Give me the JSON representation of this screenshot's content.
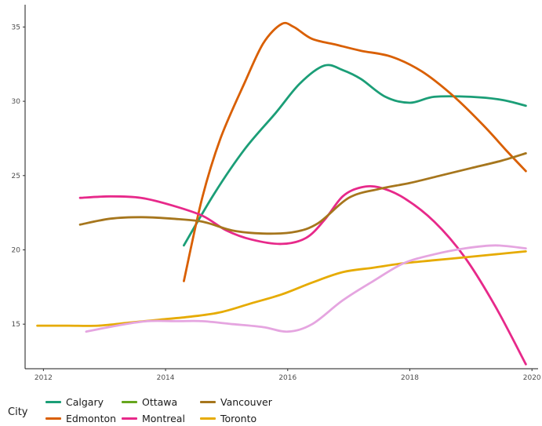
{
  "chart_data": {
    "type": "line",
    "xlim": [
      2011.7,
      2020.1
    ],
    "ylim": [
      12,
      36.5
    ],
    "x_ticks": [
      2012,
      2014,
      2016,
      2018,
      2020
    ],
    "y_ticks": [
      15,
      20,
      25,
      30,
      35
    ],
    "grid": false,
    "legend_title": "City",
    "legend_position": "bottom-left",
    "series": [
      {
        "name": "Calgary",
        "color": "#1b9e77",
        "points": [
          [
            2014.3,
            20.3
          ],
          [
            2014.8,
            23.8
          ],
          [
            2015.3,
            26.8
          ],
          [
            2015.8,
            29.2
          ],
          [
            2016.2,
            31.2
          ],
          [
            2016.6,
            32.4
          ],
          [
            2016.9,
            32.1
          ],
          [
            2017.2,
            31.5
          ],
          [
            2017.6,
            30.3
          ],
          [
            2018.0,
            29.9
          ],
          [
            2018.4,
            30.3
          ],
          [
            2019.0,
            30.3
          ],
          [
            2019.5,
            30.1
          ],
          [
            2019.9,
            29.7
          ]
        ]
      },
      {
        "name": "Edmonton",
        "color": "#d95f02",
        "points": [
          [
            2014.3,
            17.9
          ],
          [
            2014.6,
            23.5
          ],
          [
            2014.9,
            27.5
          ],
          [
            2015.3,
            31.3
          ],
          [
            2015.6,
            33.9
          ],
          [
            2015.9,
            35.2
          ],
          [
            2016.1,
            35.0
          ],
          [
            2016.4,
            34.2
          ],
          [
            2016.8,
            33.8
          ],
          [
            2017.2,
            33.4
          ],
          [
            2017.7,
            33.0
          ],
          [
            2018.2,
            32.0
          ],
          [
            2018.7,
            30.4
          ],
          [
            2019.2,
            28.4
          ],
          [
            2019.6,
            26.6
          ],
          [
            2019.9,
            25.3
          ]
        ]
      },
      {
        "name": "Ottawa",
        "color": "#66a61e",
        "points": []
      },
      {
        "name": "Montreal",
        "color": "#e7298a",
        "points": [
          [
            2012.6,
            23.5
          ],
          [
            2013.1,
            23.6
          ],
          [
            2013.6,
            23.5
          ],
          [
            2014.1,
            23.0
          ],
          [
            2014.6,
            22.3
          ],
          [
            2015.0,
            21.3
          ],
          [
            2015.4,
            20.7
          ],
          [
            2015.9,
            20.4
          ],
          [
            2016.3,
            20.8
          ],
          [
            2016.6,
            22.0
          ],
          [
            2016.9,
            23.6
          ],
          [
            2017.2,
            24.2
          ],
          [
            2017.5,
            24.2
          ],
          [
            2017.9,
            23.5
          ],
          [
            2018.4,
            21.9
          ],
          [
            2018.9,
            19.5
          ],
          [
            2019.4,
            16.2
          ],
          [
            2019.9,
            12.3
          ]
        ]
      },
      {
        "name": "Vancouver",
        "color": "#a6761d",
        "points": [
          [
            2012.6,
            21.7
          ],
          [
            2013.1,
            22.1
          ],
          [
            2013.6,
            22.2
          ],
          [
            2014.1,
            22.1
          ],
          [
            2014.6,
            21.9
          ],
          [
            2015.1,
            21.3
          ],
          [
            2015.6,
            21.1
          ],
          [
            2016.1,
            21.2
          ],
          [
            2016.5,
            21.8
          ],
          [
            2017.0,
            23.5
          ],
          [
            2017.5,
            24.1
          ],
          [
            2018.0,
            24.5
          ],
          [
            2018.5,
            25.0
          ],
          [
            2019.0,
            25.5
          ],
          [
            2019.5,
            26.0
          ],
          [
            2019.9,
            26.5
          ]
        ]
      },
      {
        "name": "Toronto",
        "color": "#e6ab02",
        "points": [
          [
            2011.9,
            14.9
          ],
          [
            2012.4,
            14.9
          ],
          [
            2012.9,
            14.9
          ],
          [
            2013.4,
            15.1
          ],
          [
            2013.9,
            15.3
          ],
          [
            2014.4,
            15.5
          ],
          [
            2014.9,
            15.8
          ],
          [
            2015.4,
            16.4
          ],
          [
            2015.9,
            17.0
          ],
          [
            2016.4,
            17.8
          ],
          [
            2016.9,
            18.5
          ],
          [
            2017.4,
            18.8
          ],
          [
            2017.9,
            19.1
          ],
          [
            2018.4,
            19.3
          ],
          [
            2018.9,
            19.5
          ],
          [
            2019.4,
            19.7
          ],
          [
            2019.9,
            19.9
          ]
        ]
      },
      {
        "name": "",
        "color": "#e5a5e0",
        "points": [
          [
            2012.7,
            14.5
          ],
          [
            2013.2,
            14.9
          ],
          [
            2013.7,
            15.2
          ],
          [
            2014.2,
            15.2
          ],
          [
            2014.6,
            15.2
          ],
          [
            2015.1,
            15.0
          ],
          [
            2015.6,
            14.8
          ],
          [
            2016.0,
            14.5
          ],
          [
            2016.4,
            15.0
          ],
          [
            2016.9,
            16.6
          ],
          [
            2017.4,
            17.9
          ],
          [
            2017.9,
            19.1
          ],
          [
            2018.4,
            19.7
          ],
          [
            2018.9,
            20.1
          ],
          [
            2019.4,
            20.3
          ],
          [
            2019.9,
            20.1
          ]
        ]
      }
    ]
  },
  "legend": {
    "title": "City",
    "items": [
      {
        "label": "Calgary",
        "color": "#1b9e77"
      },
      {
        "label": "Edmonton",
        "color": "#d95f02"
      },
      {
        "label": "Ottawa",
        "color": "#66a61e"
      },
      {
        "label": "Montreal",
        "color": "#e7298a"
      },
      {
        "label": "Vancouver",
        "color": "#a6761d"
      },
      {
        "label": "Toronto",
        "color": "#e6ab02"
      }
    ]
  }
}
